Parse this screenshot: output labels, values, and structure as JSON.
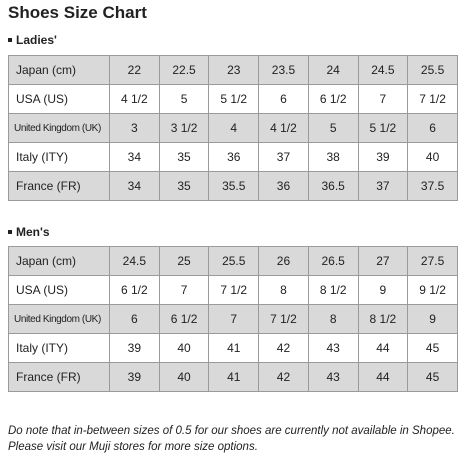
{
  "title": "Shoes Size Chart",
  "sections": [
    {
      "label": "Ladies'",
      "rows": [
        {
          "name": "Japan (cm)",
          "values": [
            "22",
            "22.5",
            "23",
            "23.5",
            "24",
            "24.5",
            "25.5"
          ]
        },
        {
          "name": "USA (US)",
          "values": [
            "4 1/2",
            "5",
            "5 1/2",
            "6",
            "6 1/2",
            "7",
            "7 1/2"
          ]
        },
        {
          "name": "United Kingdom (UK)",
          "values": [
            "3",
            "3 1/2",
            "4",
            "4 1/2",
            "5",
            "5 1/2",
            "6"
          ]
        },
        {
          "name": "Italy (ITY)",
          "values": [
            "34",
            "35",
            "36",
            "37",
            "38",
            "39",
            "40"
          ]
        },
        {
          "name": "France (FR)",
          "values": [
            "34",
            "35",
            "35.5",
            "36",
            "36.5",
            "37",
            "37.5"
          ]
        }
      ]
    },
    {
      "label": "Men's",
      "rows": [
        {
          "name": "Japan (cm)",
          "values": [
            "24.5",
            "25",
            "25.5",
            "26",
            "26.5",
            "27",
            "27.5"
          ]
        },
        {
          "name": "USA (US)",
          "values": [
            "6 1/2",
            "7",
            "7 1/2",
            "8",
            "8 1/2",
            "9",
            "9 1/2"
          ]
        },
        {
          "name": "United Kingdom (UK)",
          "values": [
            "6",
            "6 1/2",
            "7",
            "7 1/2",
            "8",
            "8 1/2",
            "9"
          ]
        },
        {
          "name": "Italy (ITY)",
          "values": [
            "39",
            "40",
            "41",
            "42",
            "43",
            "44",
            "45"
          ]
        },
        {
          "name": "France (FR)",
          "values": [
            "39",
            "40",
            "41",
            "42",
            "43",
            "44",
            "45"
          ]
        }
      ]
    }
  ],
  "note": [
    "Do note that in-between sizes of 0.5 for our shoes are currently not available in Shopee.",
    "Please visit our Muji stores for more size options."
  ],
  "colors": {
    "shaded_row": "#d9d9d9",
    "plain_row": "#ffffff",
    "border": "#9a9a9a"
  }
}
